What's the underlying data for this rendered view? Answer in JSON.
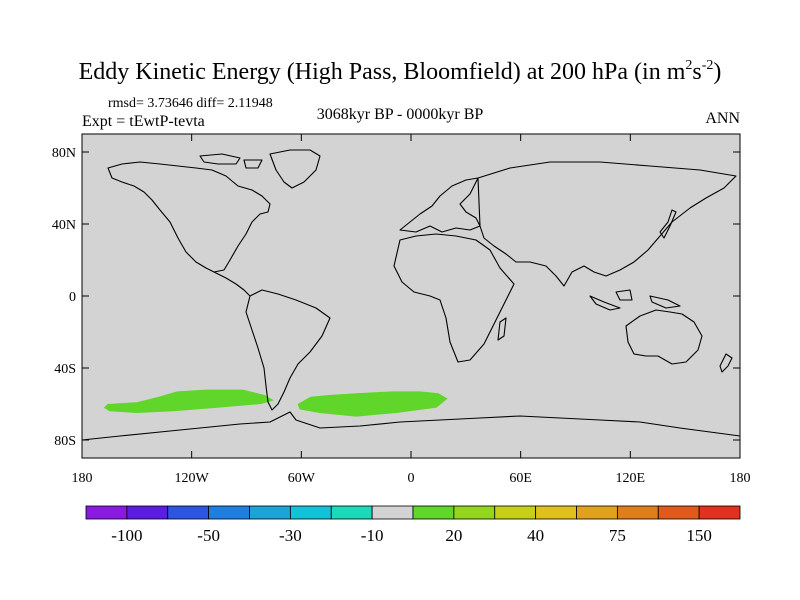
{
  "header": {
    "title_main": "Eddy Kinetic Energy (High Pass, Bloomfield) at 200 hPa (in m",
    "title_sup1": "2",
    "title_mid": "s",
    "title_sup2": "-2",
    "title_end": ")",
    "stats": "rmsd= 3.73646 diff= 2.11948",
    "left_label": "Expt = tEwtP-tevta",
    "center_label": "3068kyr BP - 0000kyr BP",
    "right_label": "ANN"
  },
  "map": {
    "lon_range": [
      -180,
      180
    ],
    "lat_range": [
      -90,
      90
    ],
    "lat_ticks": [
      {
        "value": 80,
        "label": "80N"
      },
      {
        "value": 40,
        "label": "40N"
      },
      {
        "value": 0,
        "label": "0"
      },
      {
        "value": -40,
        "label": "40S"
      },
      {
        "value": -80,
        "label": "80S"
      }
    ],
    "lon_ticks": [
      {
        "value": -180,
        "label": "180"
      },
      {
        "value": -120,
        "label": "120W"
      },
      {
        "value": -60,
        "label": "60W"
      },
      {
        "value": 0,
        "label": "0"
      },
      {
        "value": 60,
        "label": "60E"
      },
      {
        "value": 120,
        "label": "120E"
      },
      {
        "value": 180,
        "label": "180"
      }
    ],
    "background_color": "#d3d3d3",
    "anomaly_regions": [
      {
        "name": "south-pacific-positive-anomaly",
        "color": "#5fd629",
        "category": "10 to 20",
        "outline": [
          [
            -166,
            -60
          ],
          [
            -150,
            -59
          ],
          [
            -138,
            -56
          ],
          [
            -128,
            -53
          ],
          [
            -112,
            -52
          ],
          [
            -92,
            -52
          ],
          [
            -80,
            -55
          ],
          [
            -75,
            -58
          ],
          [
            -82,
            -60
          ],
          [
            -105,
            -62
          ],
          [
            -130,
            -64
          ],
          [
            -150,
            -65
          ],
          [
            -165,
            -64
          ],
          [
            -168,
            -62
          ]
        ]
      },
      {
        "name": "south-atlantic-positive-anomaly",
        "color": "#5fd629",
        "category": "10 to 20",
        "outline": [
          [
            -62,
            -60
          ],
          [
            -55,
            -56
          ],
          [
            -45,
            -55
          ],
          [
            -30,
            -54
          ],
          [
            -10,
            -53
          ],
          [
            5,
            -53
          ],
          [
            15,
            -54
          ],
          [
            20,
            -57
          ],
          [
            14,
            -62
          ],
          [
            -8,
            -65
          ],
          [
            -30,
            -67
          ],
          [
            -50,
            -65
          ],
          [
            -61,
            -63
          ]
        ]
      }
    ]
  },
  "colorbar": {
    "colors": [
      "#8b1ae0",
      "#5b1de0",
      "#2c55e0",
      "#1f7fe0",
      "#1ca3d8",
      "#12c2d9",
      "#1cd9b9",
      "#d3d3d3",
      "#5fd629",
      "#93d61c",
      "#c6d019",
      "#e0c01a",
      "#e0a11c",
      "#e07e1c",
      "#e05a1c",
      "#e0321c"
    ],
    "labels": [
      {
        "boundary": 1,
        "text": "-100"
      },
      {
        "boundary": 3,
        "text": "-50"
      },
      {
        "boundary": 5,
        "text": "-30"
      },
      {
        "boundary": 7,
        "text": "-10"
      },
      {
        "boundary": 9,
        "text": "20"
      },
      {
        "boundary": 11,
        "text": "40"
      },
      {
        "boundary": 13,
        "text": "75"
      },
      {
        "boundary": 15,
        "text": "150"
      }
    ]
  }
}
